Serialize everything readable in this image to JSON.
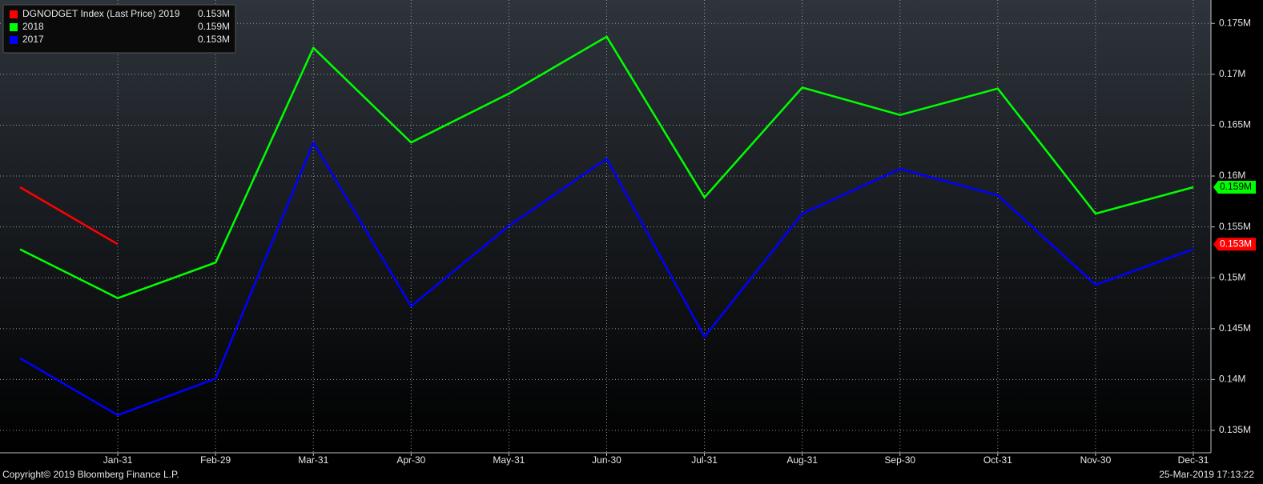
{
  "chart_data": {
    "type": "line",
    "categories": [
      null,
      "Jan-31",
      "Feb-29",
      "Mar-31",
      "Apr-30",
      "May-31",
      "Jun-30",
      "Jul-31",
      "Aug-31",
      "Sep-30",
      "Oct-31",
      "Nov-30",
      "Dec-31"
    ],
    "series": [
      {
        "name": "DGNODGET Index (Last Price) 2019",
        "color": "#ff0000",
        "last_label": "0.153M",
        "values": [
          0.1589,
          0.1533,
          null,
          null,
          null,
          null,
          null,
          null,
          null,
          null,
          null,
          null,
          null
        ]
      },
      {
        "name": "2018",
        "color": "#00ff00",
        "last_label": "0.159M",
        "values": [
          0.1528,
          0.148,
          0.1515,
          0.1726,
          0.1633,
          0.1681,
          0.1737,
          0.1579,
          0.1687,
          0.166,
          0.1686,
          0.1563,
          0.1589
        ]
      },
      {
        "name": "2017",
        "color": "#0000ff",
        "last_label": "0.153M",
        "values": [
          0.1421,
          0.1365,
          0.1401,
          0.1633,
          0.1472,
          0.1551,
          0.1617,
          0.1442,
          0.1563,
          0.1607,
          0.1581,
          0.1493,
          0.1528
        ]
      }
    ],
    "ylim": [
      0.1328,
      0.1773
    ],
    "yticks": [
      {
        "value": 0.135,
        "label": "0.135M"
      },
      {
        "value": 0.14,
        "label": "0.14M"
      },
      {
        "value": 0.145,
        "label": "0.145M"
      },
      {
        "value": 0.15,
        "label": "0.15M"
      },
      {
        "value": 0.155,
        "label": "0.155M"
      },
      {
        "value": 0.16,
        "label": "0.16M"
      },
      {
        "value": 0.165,
        "label": "0.165M"
      },
      {
        "value": 0.17,
        "label": "0.17M"
      },
      {
        "value": 0.175,
        "label": "0.175M"
      }
    ],
    "grid": true,
    "footer_left": "Copyright© 2019 Bloomberg Finance L.P.",
    "footer_right": "25-Mar-2019 17:13:22"
  }
}
